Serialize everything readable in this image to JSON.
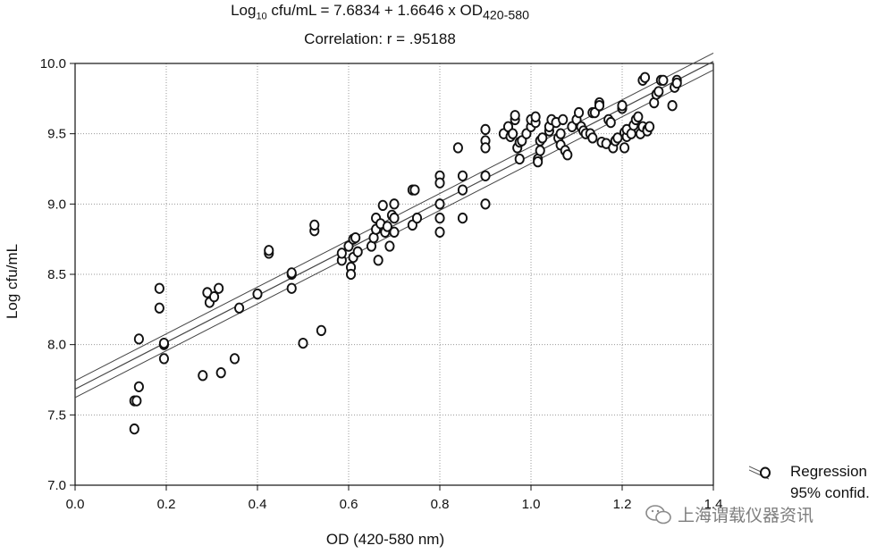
{
  "chart_data": {
    "type": "scatter",
    "title_prefix": "Log",
    "title_sub": "10",
    "title_mid": " cfu/mL = 7.6834 + 1.6646 x OD",
    "title_sub2": "420-580",
    "subtitle": "Correlation: r = .95188",
    "xlabel": "OD (420-580 nm)",
    "ylabel": "Log cfu/mL",
    "xlim": [
      0.0,
      1.4
    ],
    "ylim": [
      7.0,
      10.0
    ],
    "xticks": [
      "0.0",
      "0.2",
      "0.4",
      "0.6",
      "0.8",
      "1.0",
      "1.2",
      "1.4"
    ],
    "yticks": [
      "7.0",
      "7.5",
      "8.0",
      "8.5",
      "9.0",
      "9.5",
      "10.0"
    ],
    "grid": true,
    "regression": {
      "intercept": 7.6834,
      "slope": 1.6646,
      "r": 0.95188
    },
    "confidence_band": {
      "lower_offset": -0.06,
      "upper_offset": 0.06
    },
    "points": [
      [
        0.13,
        7.4
      ],
      [
        0.13,
        7.6
      ],
      [
        0.135,
        7.6
      ],
      [
        0.14,
        7.7
      ],
      [
        0.14,
        8.04
      ],
      [
        0.185,
        8.4
      ],
      [
        0.185,
        8.26
      ],
      [
        0.195,
        8.0
      ],
      [
        0.195,
        7.9
      ],
      [
        0.195,
        8.01
      ],
      [
        0.28,
        7.78
      ],
      [
        0.29,
        8.37
      ],
      [
        0.295,
        8.3
      ],
      [
        0.305,
        8.34
      ],
      [
        0.315,
        8.4
      ],
      [
        0.32,
        7.8
      ],
      [
        0.35,
        7.9
      ],
      [
        0.36,
        8.26
      ],
      [
        0.4,
        8.36
      ],
      [
        0.425,
        8.65
      ],
      [
        0.425,
        8.67
      ],
      [
        0.475,
        8.4
      ],
      [
        0.475,
        8.5
      ],
      [
        0.475,
        8.51
      ],
      [
        0.5,
        8.01
      ],
      [
        0.525,
        8.81
      ],
      [
        0.525,
        8.85
      ],
      [
        0.54,
        8.1
      ],
      [
        0.585,
        8.6
      ],
      [
        0.585,
        8.65
      ],
      [
        0.6,
        8.7
      ],
      [
        0.605,
        8.55
      ],
      [
        0.605,
        8.5
      ],
      [
        0.61,
        8.62
      ],
      [
        0.61,
        8.75
      ],
      [
        0.615,
        8.76
      ],
      [
        0.62,
        8.66
      ],
      [
        0.65,
        8.7
      ],
      [
        0.655,
        8.76
      ],
      [
        0.66,
        8.82
      ],
      [
        0.66,
        8.9
      ],
      [
        0.665,
        8.6
      ],
      [
        0.67,
        8.86
      ],
      [
        0.675,
        8.99
      ],
      [
        0.68,
        8.8
      ],
      [
        0.685,
        8.84
      ],
      [
        0.69,
        8.7
      ],
      [
        0.695,
        8.92
      ],
      [
        0.7,
        9.0
      ],
      [
        0.7,
        8.9
      ],
      [
        0.7,
        8.8
      ],
      [
        0.74,
        8.85
      ],
      [
        0.74,
        9.1
      ],
      [
        0.745,
        9.1
      ],
      [
        0.75,
        8.9
      ],
      [
        0.8,
        9.2
      ],
      [
        0.8,
        9.15
      ],
      [
        0.8,
        9.0
      ],
      [
        0.8,
        8.9
      ],
      [
        0.8,
        8.8
      ],
      [
        0.84,
        9.4
      ],
      [
        0.85,
        9.2
      ],
      [
        0.85,
        9.1
      ],
      [
        0.85,
        8.9
      ],
      [
        0.9,
        9.53
      ],
      [
        0.9,
        9.45
      ],
      [
        0.9,
        9.4
      ],
      [
        0.9,
        9.2
      ],
      [
        0.9,
        9.0
      ],
      [
        0.94,
        9.5
      ],
      [
        0.95,
        9.55
      ],
      [
        0.955,
        9.48
      ],
      [
        0.96,
        9.5
      ],
      [
        0.965,
        9.6
      ],
      [
        0.965,
        9.63
      ],
      [
        0.97,
        9.4
      ],
      [
        0.975,
        9.44
      ],
      [
        0.975,
        9.32
      ],
      [
        0.98,
        9.45
      ],
      [
        0.99,
        9.5
      ],
      [
        1.0,
        9.55
      ],
      [
        1.0,
        9.6
      ],
      [
        1.01,
        9.58
      ],
      [
        1.01,
        9.62
      ],
      [
        1.015,
        9.32
      ],
      [
        1.015,
        9.3
      ],
      [
        1.02,
        9.38
      ],
      [
        1.02,
        9.45
      ],
      [
        1.025,
        9.47
      ],
      [
        1.04,
        9.52
      ],
      [
        1.04,
        9.55
      ],
      [
        1.045,
        9.6
      ],
      [
        1.055,
        9.58
      ],
      [
        1.06,
        9.47
      ],
      [
        1.065,
        9.42
      ],
      [
        1.065,
        9.5
      ],
      [
        1.07,
        9.6
      ],
      [
        1.075,
        9.38
      ],
      [
        1.08,
        9.35
      ],
      [
        1.09,
        9.55
      ],
      [
        1.1,
        9.6
      ],
      [
        1.105,
        9.65
      ],
      [
        1.11,
        9.55
      ],
      [
        1.115,
        9.52
      ],
      [
        1.12,
        9.5
      ],
      [
        1.13,
        9.5
      ],
      [
        1.135,
        9.47
      ],
      [
        1.135,
        9.65
      ],
      [
        1.14,
        9.65
      ],
      [
        1.15,
        9.72
      ],
      [
        1.15,
        9.7
      ],
      [
        1.155,
        9.44
      ],
      [
        1.165,
        9.43
      ],
      [
        1.17,
        9.6
      ],
      [
        1.175,
        9.58
      ],
      [
        1.18,
        9.4
      ],
      [
        1.185,
        9.45
      ],
      [
        1.19,
        9.47
      ],
      [
        1.2,
        9.68
      ],
      [
        1.2,
        9.7
      ],
      [
        1.205,
        9.51
      ],
      [
        1.205,
        9.4
      ],
      [
        1.21,
        9.48
      ],
      [
        1.21,
        9.53
      ],
      [
        1.22,
        9.5
      ],
      [
        1.225,
        9.56
      ],
      [
        1.23,
        9.6
      ],
      [
        1.235,
        9.62
      ],
      [
        1.24,
        9.5
      ],
      [
        1.245,
        9.55
      ],
      [
        1.245,
        9.88
      ],
      [
        1.25,
        9.9
      ],
      [
        1.255,
        9.53
      ],
      [
        1.255,
        9.52
      ],
      [
        1.26,
        9.55
      ],
      [
        1.27,
        9.72
      ],
      [
        1.275,
        9.78
      ],
      [
        1.28,
        9.8
      ],
      [
        1.285,
        9.88
      ],
      [
        1.29,
        9.88
      ],
      [
        1.31,
        9.7
      ],
      [
        1.315,
        9.83
      ],
      [
        1.32,
        9.88
      ],
      [
        1.32,
        9.86
      ]
    ]
  },
  "legend": {
    "regression_label": "Regression",
    "confid_label": "95% confid."
  },
  "watermark": {
    "text": "上海谓载仪器资讯"
  }
}
